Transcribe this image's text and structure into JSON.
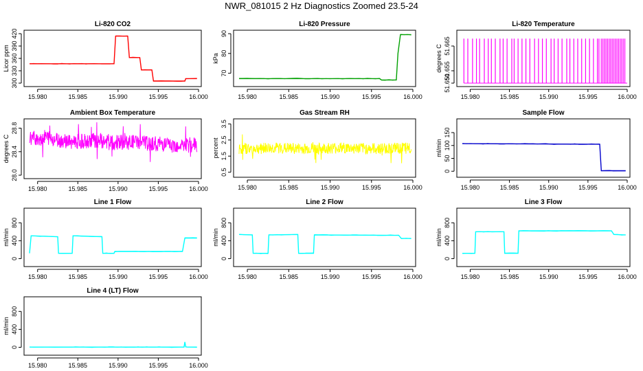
{
  "figure_title": "NWR_081015  2 Hz Diagnostics Zoomed 23.5-24",
  "chart_data": [
    {
      "type": "line",
      "title": "Li-820 CO2",
      "ylabel": "Licor ppm",
      "color": "#ff0000",
      "xlim": [
        15.979,
        16.0
      ],
      "xticks": [
        "15.980",
        "15.985",
        "15.990",
        "15.995",
        "16.000"
      ],
      "ylim": [
        300,
        420
      ],
      "yticks": [
        "300",
        "330",
        "360",
        "390",
        "420"
      ],
      "series": [
        {
          "x": [
            15.979,
            15.9895,
            15.9897,
            15.9912,
            15.9914,
            15.9927,
            15.9929,
            15.9942,
            15.9944,
            15.9983,
            15.9984,
            15.9998
          ],
          "y": [
            347,
            347,
            414,
            414,
            362,
            362,
            332,
            332,
            305,
            305,
            311,
            311
          ]
        }
      ]
    },
    {
      "type": "line",
      "title": "Li-820 Pressure",
      "ylabel": "kPa",
      "color": "#00a000",
      "xlim": [
        15.979,
        16.0
      ],
      "xticks": [
        "15.980",
        "15.985",
        "15.990",
        "15.995",
        "16.000"
      ],
      "ylim": [
        65,
        90
      ],
      "yticks": [
        "70",
        "80",
        "90"
      ],
      "series": [
        {
          "x": [
            15.979,
            15.996,
            15.9962,
            15.998,
            15.9982,
            15.9985,
            15.9998
          ],
          "y": [
            67.3,
            67.3,
            66.6,
            66.6,
            80,
            89.5,
            89.5
          ]
        }
      ]
    },
    {
      "type": "line",
      "title": "Li-820 Temperature",
      "ylabel": "degrees C",
      "color": "#ff00ff",
      "xlim": [
        15.979,
        16.0
      ],
      "xticks": [
        "15.980",
        "15.985",
        "15.990",
        "15.995",
        "16.000"
      ],
      "ylim": [
        51.65,
        51.67
      ],
      "yticks": [
        "51.650",
        "51.655",
        "51.665"
      ],
      "series": [
        {
          "x": [
            15.9792,
            15.9797,
            15.9803,
            15.9808,
            15.9812,
            15.9818,
            15.9823,
            15.9827,
            15.9832,
            15.9838,
            15.9842,
            15.9847,
            15.9853,
            15.9856,
            15.9861,
            15.9866,
            15.9871,
            15.9876,
            15.9882,
            15.9887,
            15.9892,
            15.9897,
            15.9903,
            15.9907,
            15.9912,
            15.9917,
            15.9923,
            15.9927,
            15.9932,
            15.9937,
            15.9942,
            15.9947,
            15.9952,
            15.9957,
            15.9962,
            15.9964,
            15.9967,
            15.9969,
            15.9971,
            15.9973,
            15.9975,
            15.9977,
            15.9979,
            15.9981,
            15.9983,
            15.9985,
            15.9987,
            15.9989,
            15.9991,
            15.9993,
            15.9995,
            15.9997
          ],
          "y": [
            51.665,
            51.655,
            51.665,
            51.655,
            51.665,
            51.665,
            51.655,
            51.665,
            51.655,
            51.665,
            51.665,
            51.655,
            51.665,
            51.655,
            51.665,
            51.655,
            51.665,
            51.665,
            51.655,
            51.665,
            51.655,
            51.665,
            51.665,
            51.655,
            51.665,
            51.655,
            51.665,
            51.655,
            51.665,
            51.665,
            51.655,
            51.665,
            51.655,
            51.665,
            51.665,
            51.655,
            51.665,
            51.665,
            51.665,
            51.655,
            51.665,
            51.665,
            51.665,
            51.655,
            51.665,
            51.665,
            51.655,
            51.665,
            51.665,
            51.655,
            51.665,
            51.665
          ]
        }
      ]
    },
    {
      "type": "line",
      "title": "Ambient Box Temperature",
      "ylabel": "degrees C",
      "color": "#ff00ff",
      "xlim": [
        15.979,
        16.0
      ],
      "xticks": [
        "15.980",
        "15.985",
        "15.990",
        "15.995",
        "16.000"
      ],
      "ylim": [
        28.0,
        28.9
      ],
      "yticks": [
        "28.0",
        "28.4",
        "28.8"
      ],
      "series": [
        {
          "x": [
            15.979,
            15.981,
            15.983,
            15.985,
            15.987,
            15.989,
            15.991,
            15.993,
            15.995,
            15.997,
            15.9998
          ],
          "y": [
            28.62,
            28.64,
            28.58,
            28.57,
            28.6,
            28.55,
            28.56,
            28.55,
            28.53,
            28.5,
            28.52
          ]
        }
      ]
    },
    {
      "type": "line",
      "title": "Gas Stream RH",
      "ylabel": "percent",
      "color": "#ffff00",
      "xlim": [
        15.979,
        16.0
      ],
      "xticks": [
        "15.980",
        "15.985",
        "15.990",
        "15.995",
        "16.000"
      ],
      "ylim": [
        0.4,
        3.6
      ],
      "yticks": [
        "0.5",
        "1.5",
        "2.5",
        "3.5"
      ],
      "series": [
        {
          "x": [
            15.979,
            15.983,
            15.987,
            15.991,
            15.995,
            15.9998
          ],
          "y": [
            1.95,
            2.0,
            1.95,
            2.0,
            1.95,
            2.0
          ]
        }
      ]
    },
    {
      "type": "line",
      "title": "Sample Flow",
      "ylabel": "ml/min",
      "color": "#0000cc",
      "xlim": [
        15.979,
        16.0
      ],
      "xticks": [
        "15.980",
        "15.985",
        "15.990",
        "15.995",
        "16.000"
      ],
      "ylim": [
        -10,
        190
      ],
      "yticks": [
        "0",
        "50",
        "100",
        "150"
      ],
      "series": [
        {
          "x": [
            15.979,
            15.9965,
            15.9967,
            15.9998
          ],
          "y": [
            107,
            105,
            2,
            2
          ]
        }
      ]
    },
    {
      "type": "line",
      "title": "Line 1 Flow",
      "ylabel": "ml/min",
      "color": "#00ffff",
      "xlim": [
        15.979,
        16.0
      ],
      "xticks": [
        "15.980",
        "15.985",
        "15.990",
        "15.995",
        "16.000"
      ],
      "ylim": [
        -100,
        1050
      ],
      "yticks": [
        "0",
        "400",
        "800"
      ],
      "series": [
        {
          "x": [
            15.979,
            15.9792,
            15.9825,
            15.9826,
            15.9843,
            15.9844,
            15.988,
            15.9881,
            15.9895,
            15.9896,
            15.998,
            15.9983,
            15.9998
          ],
          "y": [
            120,
            510,
            490,
            120,
            120,
            510,
            490,
            120,
            120,
            160,
            160,
            460,
            460
          ]
        }
      ]
    },
    {
      "type": "line",
      "title": "Line 2 Flow",
      "ylabel": "ml/min",
      "color": "#00ffff",
      "xlim": [
        15.979,
        16.0
      ],
      "xticks": [
        "15.980",
        "15.985",
        "15.990",
        "15.995",
        "16.000"
      ],
      "ylim": [
        -100,
        1050
      ],
      "yticks": [
        "0",
        "400",
        "800"
      ],
      "series": [
        {
          "x": [
            15.979,
            15.9806,
            15.9807,
            15.9825,
            15.9826,
            15.9861,
            15.9862,
            15.988,
            15.9881,
            15.9983,
            15.9986,
            15.9998
          ],
          "y": [
            540,
            530,
            120,
            120,
            530,
            540,
            120,
            120,
            530,
            520,
            450,
            450
          ]
        }
      ]
    },
    {
      "type": "line",
      "title": "Line 3 Flow",
      "ylabel": "ml/min",
      "color": "#00ffff",
      "xlim": [
        15.979,
        16.0
      ],
      "xticks": [
        "15.980",
        "15.985",
        "15.990",
        "15.995",
        "16.000"
      ],
      "ylim": [
        -100,
        1050
      ],
      "yticks": [
        "0",
        "400",
        "800"
      ],
      "series": [
        {
          "x": [
            15.979,
            15.9792,
            15.9806,
            15.9807,
            15.9843,
            15.9844,
            15.9861,
            15.9862,
            15.998,
            15.9983,
            15.9998
          ],
          "y": [
            120,
            120,
            120,
            600,
            600,
            120,
            120,
            620,
            620,
            540,
            530
          ]
        }
      ]
    },
    {
      "type": "line",
      "title": "Line 4 (LT) Flow",
      "ylabel": "ml/min",
      "color": "#00ffff",
      "xlim": [
        15.979,
        16.0
      ],
      "xticks": [
        "15.980",
        "15.985",
        "15.990",
        "15.995",
        "16.000"
      ],
      "ylim": [
        -100,
        1050
      ],
      "yticks": [
        "0",
        "400",
        "800"
      ],
      "series": [
        {
          "x": [
            15.979,
            15.9982,
            15.9983,
            15.9984,
            15.9986,
            15.9998
          ],
          "y": [
            5,
            5,
            120,
            10,
            5,
            5
          ]
        }
      ]
    }
  ]
}
